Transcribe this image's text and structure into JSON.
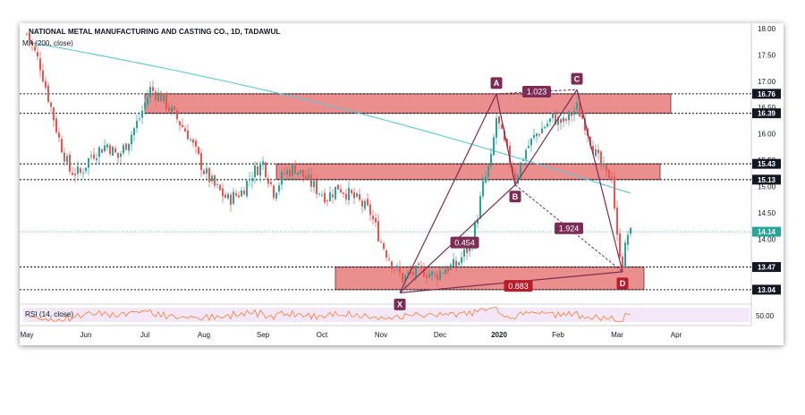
{
  "chart_data": {
    "type": "candlestick",
    "title": "NATIONAL METAL MANUFACTURING AND CASTING CO., 1D, TADAWUL",
    "indicator_ma": "MA (200, close)",
    "indicator_rsi": "RSI (14, close)",
    "price_axis": {
      "ylim": [
        12.8,
        18.1
      ],
      "ticks": [
        "18.00",
        "17.50",
        "17.00",
        "16.50",
        "16.00",
        "15.50",
        "15.00",
        "14.50",
        "14.00"
      ],
      "tick_values": [
        18.0,
        17.5,
        17.0,
        16.5,
        16.0,
        15.5,
        15.0,
        14.5,
        14.0
      ]
    },
    "rsi_axis": {
      "tick": "50.00",
      "tick_value": 50
    },
    "time_axis": {
      "labels": [
        "May",
        "Jun",
        "Jul",
        "Aug",
        "Sep",
        "Oct",
        "Nov",
        "Dec",
        "2020",
        "Feb",
        "Mar",
        "Apr"
      ],
      "bold_labels": [
        "2020"
      ],
      "label_index": [
        0,
        22,
        44,
        66,
        88,
        110,
        132,
        154,
        176,
        198,
        220,
        242
      ]
    },
    "levels": [
      {
        "value": 16.76,
        "label": "16.76"
      },
      {
        "value": 16.39,
        "label": "16.39"
      },
      {
        "value": 15.43,
        "label": "15.43"
      },
      {
        "value": 15.13,
        "label": "15.13"
      },
      {
        "value": 13.47,
        "label": "13.47"
      },
      {
        "value": 13.04,
        "label": "13.04"
      }
    ],
    "current_price": {
      "value": 14.14,
      "label": "14.14",
      "color": "#26a69a"
    },
    "zones": [
      {
        "from_index": 44,
        "to_index": 240,
        "low": 16.39,
        "high": 16.76
      },
      {
        "from_index": 93,
        "to_index": 236,
        "low": 15.13,
        "high": 15.43
      },
      {
        "from_index": 115,
        "to_index": 230,
        "low": 13.04,
        "high": 13.47
      }
    ],
    "harmonic_points": [
      {
        "name": "X",
        "index": 139,
        "value": 12.98
      },
      {
        "name": "A",
        "index": 175,
        "value": 16.76
      },
      {
        "name": "B",
        "index": 182,
        "value": 15.03
      },
      {
        "name": "C",
        "index": 205,
        "value": 16.84
      },
      {
        "name": "D",
        "index": 222,
        "value": 13.38
      }
    ],
    "ratios": [
      {
        "label": "0.454",
        "between": [
          "X",
          "B"
        ]
      },
      {
        "label": "1.023",
        "between": [
          "A",
          "C"
        ]
      },
      {
        "label": "1.924",
        "between": [
          "B",
          "D"
        ]
      },
      {
        "label": "0.883",
        "between": [
          "X",
          "D"
        ]
      }
    ],
    "colors": {
      "up": "#26a69a",
      "down": "#ef5350",
      "ma": "#5bc8d6",
      "pattern": "#7b2d55",
      "zone_fill": "#e98888",
      "zone_stroke": "#5d2a3a",
      "rsi": "#ff7a2f",
      "rsi_band": "#e9d5f2",
      "level": "#1a1a1a",
      "label_bg": "#131722",
      "d_label": "#b71c2a"
    }
  }
}
